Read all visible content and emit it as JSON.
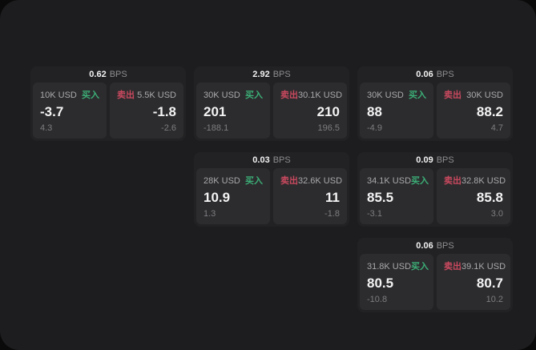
{
  "labels": {
    "bps_unit": "BPS",
    "buy": "买入",
    "sell": "卖出"
  },
  "colors": {
    "canvas-bg": "#1d1d1f",
    "card-bg": "#222224",
    "panel-bg": "#2c2c2e",
    "buy-green": "#3cae77",
    "sell-red": "#c9495f"
  },
  "cards": [
    {
      "bps": "0.62",
      "buy": {
        "size": "10K USD",
        "price": "-3.7",
        "sub": "4.3"
      },
      "sell": {
        "size": "5.5K USD",
        "price": "-1.8",
        "sub": "-2.6"
      }
    },
    {
      "bps": "2.92",
      "buy": {
        "size": "30K USD",
        "price": "201",
        "sub": "-188.1"
      },
      "sell": {
        "size": "30.1K USD",
        "price": "210",
        "sub": "196.5"
      }
    },
    {
      "bps": "0.06",
      "buy": {
        "size": "30K USD",
        "price": "88",
        "sub": "-4.9"
      },
      "sell": {
        "size": "30K USD",
        "price": "88.2",
        "sub": "4.7"
      }
    },
    {
      "bps": "0.03",
      "buy": {
        "size": "28K USD",
        "price": "10.9",
        "sub": "1.3"
      },
      "sell": {
        "size": "32.6K USD",
        "price": "11",
        "sub": "-1.8"
      }
    },
    {
      "bps": "0.09",
      "buy": {
        "size": "34.1K USD",
        "price": "85.5",
        "sub": "-3.1"
      },
      "sell": {
        "size": "32.8K USD",
        "price": "85.8",
        "sub": "3.0"
      }
    },
    {
      "bps": "0.06",
      "buy": {
        "size": "31.8K USD",
        "price": "80.5",
        "sub": "-10.8"
      },
      "sell": {
        "size": "39.1K USD",
        "price": "80.7",
        "sub": "10.2"
      }
    }
  ]
}
